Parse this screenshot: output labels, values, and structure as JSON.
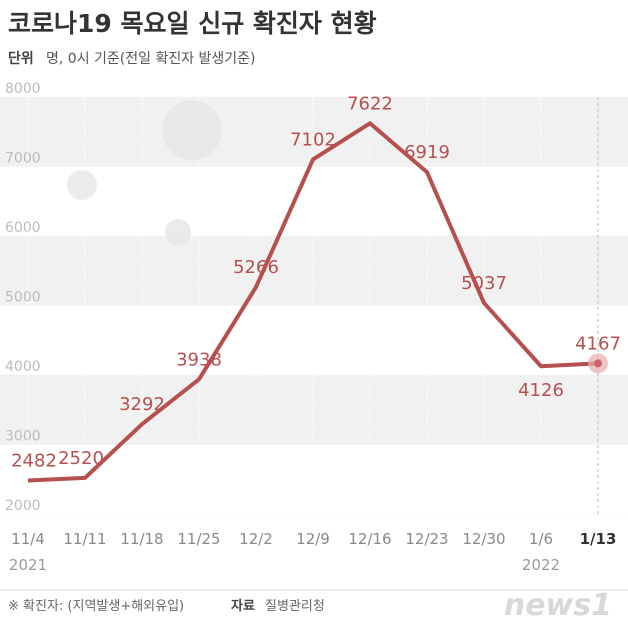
{
  "chart_data": {
    "type": "line",
    "title": "코로나19 목요일 신규 확진자 현황",
    "unit_label": "단위",
    "unit": "명, 0시 기준(전일 확진자 발생기준)",
    "categories": [
      "11/4",
      "11/11",
      "11/18",
      "11/25",
      "12/2",
      "12/9",
      "12/16",
      "12/23",
      "12/30",
      "1/6",
      "1/13"
    ],
    "x_sublabels": [
      "2021",
      null,
      null,
      null,
      null,
      null,
      null,
      null,
      null,
      "2022",
      null
    ],
    "values": [
      2482,
      2520,
      3292,
      3938,
      5266,
      7102,
      7622,
      6919,
      5037,
      4126,
      4167
    ],
    "color": "#b5504f",
    "ylim": [
      2000,
      8000
    ],
    "yticks": [
      2000,
      3000,
      4000,
      5000,
      6000,
      7000,
      8000
    ],
    "note": "※ 확진자: (지역발생+해외유입)",
    "source_label": "자료",
    "source": "질병관리청",
    "logo": "news1"
  }
}
